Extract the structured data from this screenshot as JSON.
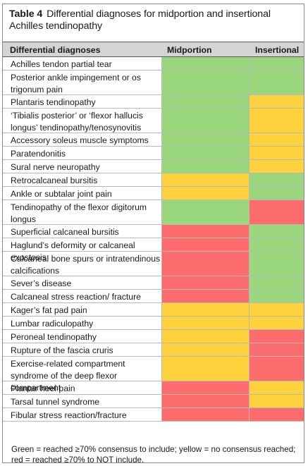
{
  "caption": {
    "number": "Table 4",
    "text": "Differential diagnoses for midportion and insertional Achilles tendinopathy"
  },
  "header": {
    "col1": "Differential diagnoses",
    "col2": "Midportion",
    "col3": "Insertional"
  },
  "colors": {
    "green": "#9ad67b",
    "yellow": "#fed23c",
    "red": "#fd6c6c",
    "header_bg": "#d4d4d4"
  },
  "rows": [
    {
      "label": "Achilles tendon partial tear",
      "midportion": "green",
      "insertional": "green"
    },
    {
      "label": "Posterior ankle impingement or os trigonum pain",
      "midportion": "green",
      "insertional": "green"
    },
    {
      "label": "Plantaris tendinopathy",
      "midportion": "green",
      "insertional": "yellow"
    },
    {
      "label": "‘Tibialis posterior’ or ‘flexor hallucis longus’ tendinopathy/tenosynovitis",
      "midportion": "green",
      "insertional": "yellow"
    },
    {
      "label": "Accessory soleus muscle symptoms",
      "midportion": "green",
      "insertional": "yellow"
    },
    {
      "label": "Paratendonitis",
      "midportion": "green",
      "insertional": "yellow"
    },
    {
      "label": "Sural nerve neuropathy",
      "midportion": "green",
      "insertional": "yellow"
    },
    {
      "label": "Retrocalcaneal bursitis",
      "midportion": "yellow",
      "insertional": "green"
    },
    {
      "label": "Ankle or subtalar joint pain",
      "midportion": "yellow",
      "insertional": "green"
    },
    {
      "label": "Tendinopathy of the flexor digitorum longus",
      "midportion": "green",
      "insertional": "red"
    },
    {
      "label": "Superficial calcaneal bursitis",
      "midportion": "red",
      "insertional": "green"
    },
    {
      "label": "Haglund’s deformity or calcaneal exostosis",
      "midportion": "red",
      "insertional": "green"
    },
    {
      "label": "Calcaneal bone spurs or intratendinous calcifications",
      "midportion": "red",
      "insertional": "green"
    },
    {
      "label": "Sever’s disease",
      "midportion": "red",
      "insertional": "green"
    },
    {
      "label": "Calcaneal stress reaction/ fracture",
      "midportion": "red",
      "insertional": "green"
    },
    {
      "label": "Kager’s fat pad pain",
      "midportion": "yellow",
      "insertional": "yellow"
    },
    {
      "label": "Lumbar radiculopathy",
      "midportion": "yellow",
      "insertional": "yellow"
    },
    {
      "label": "Peroneal tendinopathy",
      "midportion": "yellow",
      "insertional": "red"
    },
    {
      "label": "Rupture of the fascia cruris",
      "midportion": "yellow",
      "insertional": "red"
    },
    {
      "label": "Exercise-related compartment syndrome of the deep flexor compartment",
      "midportion": "yellow",
      "insertional": "red"
    },
    {
      "label": "Plantar heel pain",
      "midportion": "red",
      "insertional": "yellow"
    },
    {
      "label": "Tarsal tunnel syndrome",
      "midportion": "red",
      "insertional": "yellow"
    },
    {
      "label": "Fibular stress reaction/fracture",
      "midportion": "red",
      "insertional": "red"
    }
  ],
  "footnote": "Green = reached ≥70% consensus to include; yellow = no consensus reached; red = reached ≥70% to NOT include."
}
